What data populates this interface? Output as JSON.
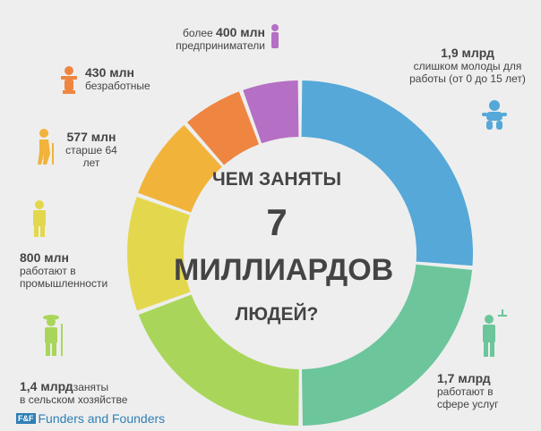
{
  "chart_data": {
    "type": "pie",
    "donut": true,
    "center_text": {
      "line1": "ЧЕМ ЗАНЯТЫ",
      "line2": "7",
      "line3": "МИЛЛИАРДОВ",
      "line4": "ЛЮДЕЙ?"
    },
    "slices": [
      {
        "value_text": "1,9 млрд",
        "desc": "слишком молоды для работы (от 0 до 15 лет)",
        "value": 1.9,
        "color": "#55a8d8",
        "icon": "baby-icon"
      },
      {
        "value_text": "1,7 млрд",
        "desc": "работают в сфере услуг",
        "value": 1.7,
        "color": "#6cc59b",
        "icon": "waiter-icon"
      },
      {
        "value_text": "1,4 млрд",
        "desc_inline": "заняты",
        "desc": "в сельском хозяйстве",
        "value": 1.4,
        "color": "#a9d65a",
        "icon": "farmer-icon"
      },
      {
        "value_text": "800 млн",
        "desc": "работают в промышленности",
        "value": 0.8,
        "color": "#e3d84d",
        "icon": "worker-icon"
      },
      {
        "value_text": "577 млн",
        "desc": "старше 64 лет",
        "value": 0.577,
        "color": "#f1b33a",
        "icon": "elder-icon"
      },
      {
        "value_text": "430 млн",
        "desc": "безработные",
        "value": 0.43,
        "color": "#ee8642",
        "icon": "unemployed-icon"
      },
      {
        "value_prefix": "более",
        "value_text": "400 млн",
        "desc": "предприниматели",
        "value": 0.4,
        "color": "#b56fc4",
        "icon": "businessman-icon"
      }
    ]
  },
  "footer": {
    "mark": "F&F",
    "text": "Funders and Founders"
  }
}
